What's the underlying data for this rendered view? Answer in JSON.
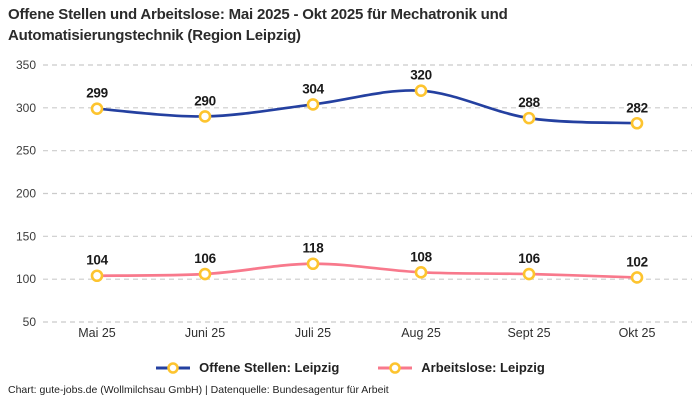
{
  "title": {
    "line1": "Offene Stellen und Arbeitslose: Mai 2025 - Okt 2025 für Mechatronik und",
    "line2": "Automatisierungstechnik (Region Leipzig)"
  },
  "footer": "Chart: gute-jobs.de (Wollmilchsau GmbH) | Datenquelle: Bundesagentur für Arbeit",
  "chart_data": {
    "type": "line",
    "title": "Offene Stellen und Arbeitslose: Mai 2025 - Okt 2025 für Mechatronik und Automatisierungstechnik (Region Leipzig)",
    "categories": [
      "Mai 25",
      "Juni 25",
      "Juli 25",
      "Aug 25",
      "Sept 25",
      "Okt 25"
    ],
    "series": [
      {
        "name": "Offene Stellen: Leipzig",
        "color": "#2440A0",
        "values": [
          299,
          290,
          304,
          320,
          288,
          282
        ]
      },
      {
        "name": "Arbeitslose: Leipzig",
        "color": "#F8798C",
        "values": [
          104,
          106,
          118,
          108,
          106,
          102
        ]
      }
    ],
    "yticks": [
      350,
      300,
      250,
      200,
      150,
      100,
      50
    ],
    "ylim": [
      50,
      350
    ],
    "xlabel": "",
    "ylabel": "",
    "grid_on": true,
    "grid": {
      "color": "#CBCBCB",
      "dash": "5 4"
    },
    "marker": {
      "fill": "#FFFFFF",
      "stroke": "#FDC42F"
    },
    "legend_position": "bottom",
    "data_labels_shown": true
  }
}
